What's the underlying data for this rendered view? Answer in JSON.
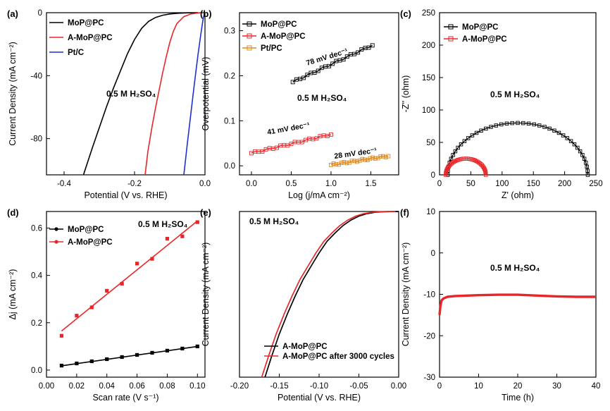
{
  "figure": {
    "colors": {
      "black": "#000000",
      "red": "#e8262a",
      "blue": "#1f2fd6",
      "orange": "#e08a1e"
    }
  },
  "chart_data": [
    {
      "panel": "(a)",
      "type": "line",
      "xlabel": "Potential (V vs. RHE)",
      "ylabel": "Current Density (mA cm⁻²)",
      "xlim": [
        -0.45,
        0.0
      ],
      "ylim": [
        -103,
        0
      ],
      "xticks": [
        -0.4,
        -0.2,
        0.0
      ],
      "xtick_labels": [
        "-0.4",
        "-0.2",
        "0.0"
      ],
      "yticks": [
        0,
        -40,
        -80
      ],
      "ytick_labels": [
        "0",
        "-40",
        "-80"
      ],
      "legend": [
        "MoP@PC",
        "A-MoP@PC",
        "Pt/C"
      ],
      "legend_loc": "top-left",
      "annotations": [
        "0.5 M H₂SO₄"
      ],
      "series": [
        {
          "name": "MoP@PC",
          "color": "#000000",
          "x": [
            -0.345,
            -0.32,
            -0.3,
            -0.28,
            -0.26,
            -0.24,
            -0.22,
            -0.2,
            -0.18,
            -0.16,
            -0.14,
            -0.12,
            -0.1,
            -0.08,
            -0.06,
            -0.05,
            -0.035,
            -0.02
          ],
          "y": [
            -103,
            -86,
            -73,
            -60,
            -48,
            -37,
            -26,
            -17,
            -10,
            -5.5,
            -3,
            -1.6,
            -0.8,
            -0.4,
            -0.2,
            -0.1,
            -0.05,
            0
          ]
        },
        {
          "name": "A-MoP@PC",
          "color": "#e8262a",
          "x": [
            -0.17,
            -0.162,
            -0.15,
            -0.14,
            -0.13,
            -0.12,
            -0.11,
            -0.1,
            -0.09,
            -0.08,
            -0.06,
            -0.04,
            -0.02,
            -0.01
          ],
          "y": [
            -103,
            -88,
            -72,
            -60,
            -49,
            -38,
            -28,
            -19,
            -12,
            -7,
            -2.5,
            -0.8,
            -0.2,
            0
          ]
        },
        {
          "name": "Pt/C",
          "color": "#1f2fd6",
          "x": [
            -0.06,
            -0.05,
            -0.04,
            -0.03,
            -0.02,
            -0.012,
            -0.006,
            -0.002,
            0.0
          ],
          "y": [
            -103,
            -83,
            -64,
            -45,
            -27,
            -14,
            -5,
            -1,
            0
          ]
        }
      ]
    },
    {
      "panel": "(b)",
      "type": "scatter",
      "xlabel": "Log (j/mA cm⁻²)",
      "ylabel": "Overpotential (mV)",
      "xlim": [
        -0.15,
        1.85
      ],
      "ylim": [
        -0.02,
        0.34
      ],
      "xticks": [
        0.0,
        0.5,
        1.0,
        1.5
      ],
      "xtick_labels": [
        "0.0",
        "0.5",
        "1.0",
        "1.5"
      ],
      "yticks": [
        0.0,
        0.1,
        0.2,
        0.3
      ],
      "ytick_labels": [
        "0.0",
        "0.1",
        "0.2",
        "0.3"
      ],
      "legend": [
        "MoP@PC",
        "A-MoP@PC",
        "Pt/PC"
      ],
      "legend_loc": "top-left",
      "annotations": [
        "0.5 M H₂SO₄",
        "78 mV dec⁻¹",
        "41 mV dec⁻¹",
        "28 mV dec⁻¹"
      ],
      "series": [
        {
          "name": "MoP@PC",
          "color": "#000000",
          "fit_slope_mV_dec": 78,
          "x_range": [
            0.52,
            1.52
          ],
          "y_range": [
            0.186,
            0.268
          ]
        },
        {
          "name": "A-MoP@PC",
          "color": "#e8262a",
          "fit_slope_mV_dec": 41,
          "x_range": [
            0.0,
            1.0
          ],
          "y_range": [
            0.028,
            0.07
          ]
        },
        {
          "name": "Pt/PC",
          "color": "#e08a1e",
          "fit_slope_mV_dec": 28,
          "x_range": [
            1.0,
            1.72
          ],
          "y_range": [
            0.002,
            0.022
          ]
        }
      ]
    },
    {
      "panel": "(c)",
      "type": "scatter",
      "xlabel": "Z' (ohm)",
      "ylabel": "-Z'' (ohm)",
      "xlim": [
        0,
        250
      ],
      "ylim": [
        0,
        250
      ],
      "xticks": [
        0,
        50,
        100,
        150,
        200,
        250
      ],
      "xtick_labels": [
        "0",
        "50",
        "100",
        "150",
        "200",
        "250"
      ],
      "yticks": [
        0,
        50,
        100,
        150,
        200,
        250
      ],
      "ytick_labels": [
        "0",
        "50",
        "100",
        "150",
        "200",
        "250"
      ],
      "legend": [
        "MoP@PC",
        "A-MoP@PC"
      ],
      "legend_loc": "top-left",
      "annotations": [
        "0.5 M H₂SO₄"
      ],
      "series": [
        {
          "name": "MoP@PC",
          "color": "#000000",
          "semicircle_center": 125,
          "semicircle_radius": 112,
          "peak": 80
        },
        {
          "name": "A-MoP@PC",
          "color": "#e8262a",
          "semicircle_center": 42,
          "semicircle_radius": 32,
          "peak": 25
        }
      ]
    },
    {
      "panel": "(d)",
      "type": "scatter",
      "xlabel": "Scan rate (V s⁻¹)",
      "ylabel": "Δj (mA cm⁻²)",
      "xlim": [
        0.0,
        0.105
      ],
      "ylim": [
        -0.03,
        0.67
      ],
      "xticks": [
        0.0,
        0.02,
        0.04,
        0.06,
        0.08,
        0.1
      ],
      "xtick_labels": [
        "0.00",
        "0.02",
        "0.04",
        "0.06",
        "0.08",
        "0.10"
      ],
      "yticks": [
        0.0,
        0.2,
        0.4,
        0.6
      ],
      "ytick_labels": [
        "0.0",
        "0.2",
        "0.4",
        "0.6"
      ],
      "legend": [
        "MoP@PC",
        "A-MoP@PC"
      ],
      "legend_loc": "top-left",
      "annotations": [
        "0.5 M H₂SO₄"
      ],
      "x": [
        0.01,
        0.02,
        0.03,
        0.04,
        0.05,
        0.06,
        0.07,
        0.08,
        0.09,
        0.1
      ],
      "series": [
        {
          "name": "MoP@PC",
          "color": "#000000",
          "values": [
            0.019,
            0.028,
            0.037,
            0.046,
            0.055,
            0.064,
            0.073,
            0.082,
            0.091,
            0.1
          ],
          "fit": [
            0.018,
            0.1
          ]
        },
        {
          "name": "A-MoP@PC",
          "color": "#e8262a",
          "values": [
            0.145,
            0.23,
            0.265,
            0.335,
            0.365,
            0.45,
            0.47,
            0.555,
            0.565,
            0.625
          ],
          "fit": [
            0.165,
            0.63
          ]
        }
      ]
    },
    {
      "panel": "(e)",
      "type": "line",
      "xlabel": "Potential (V vs. RHE)",
      "ylabel": "Current Density (mA cm⁻²)",
      "xlim": [
        -0.2,
        0.0
      ],
      "ylim": [
        -100,
        0
      ],
      "xticks": [
        -0.2,
        -0.15,
        -0.1,
        -0.05,
        0.0
      ],
      "xtick_labels": [
        "-0.20",
        "-0.15",
        "-0.10",
        "-0.05",
        "0.00"
      ],
      "yticks": [],
      "ytick_labels": [],
      "legend": [
        "A-MoP@PC",
        "A-MoP@PC after 3000 cycles"
      ],
      "legend_loc": "bottom-left",
      "annotations": [
        "0.5 M H₂SO₄"
      ],
      "series": [
        {
          "name": "A-MoP@PC",
          "color": "#000000",
          "x": [
            -0.168,
            -0.16,
            -0.15,
            -0.14,
            -0.13,
            -0.12,
            -0.11,
            -0.1,
            -0.09,
            -0.08,
            -0.07,
            -0.06,
            -0.05,
            -0.04,
            -0.03,
            -0.02,
            -0.01,
            0.0
          ],
          "y": [
            -100,
            -88,
            -74,
            -62,
            -51,
            -41,
            -33,
            -25,
            -18,
            -13,
            -8.5,
            -5.2,
            -2.8,
            -1.3,
            -0.5,
            -0.15,
            -0.03,
            0
          ]
        },
        {
          "name": "A-MoP@PC after 3000 cycles",
          "color": "#e8262a",
          "x": [
            -0.172,
            -0.164,
            -0.154,
            -0.144,
            -0.134,
            -0.124,
            -0.114,
            -0.104,
            -0.094,
            -0.084,
            -0.074,
            -0.064,
            -0.054,
            -0.044,
            -0.034,
            -0.024,
            -0.014,
            -0.004
          ],
          "y": [
            -100,
            -88,
            -74,
            -62,
            -51,
            -41,
            -33,
            -25,
            -18,
            -13,
            -8.5,
            -5.2,
            -2.8,
            -1.3,
            -0.5,
            -0.15,
            -0.03,
            0
          ]
        }
      ]
    },
    {
      "panel": "(f)",
      "type": "line",
      "xlabel": "Time (h)",
      "ylabel": "Current Density (mA cm⁻²)",
      "xlim": [
        0,
        40
      ],
      "ylim": [
        -30,
        10
      ],
      "xticks": [
        0,
        10,
        20,
        30,
        40
      ],
      "xtick_labels": [
        "0",
        "10",
        "20",
        "30",
        "40"
      ],
      "yticks": [
        10,
        0,
        -10,
        -20,
        -30
      ],
      "ytick_labels": [
        "10",
        "0",
        "-10",
        "-20",
        "-30"
      ],
      "legend": [],
      "annotations": [
        "0.5 M H₂SO₄"
      ],
      "series": [
        {
          "name": "A-MoP@PC",
          "color": "#e8262a",
          "x": [
            0,
            0.2,
            0.5,
            1,
            2,
            4,
            7,
            10,
            15,
            20,
            25,
            30,
            35,
            40
          ],
          "y": [
            -15,
            -13,
            -11.5,
            -11,
            -10.6,
            -10.4,
            -10.3,
            -10.2,
            -10.1,
            -10.1,
            -10.3,
            -10.5,
            -10.6,
            -10.6
          ]
        }
      ]
    }
  ]
}
